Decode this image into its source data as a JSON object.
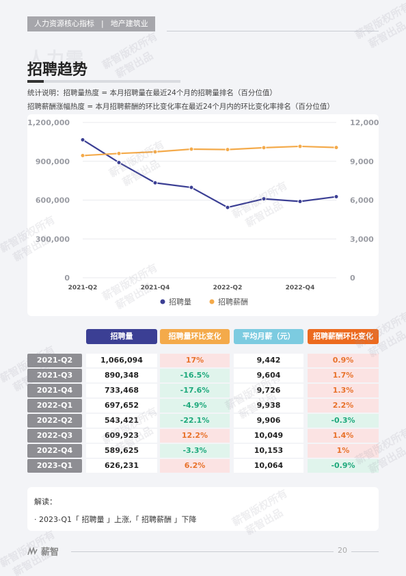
{
  "header": {
    "category": "人力资源核心指标",
    "separator": "|",
    "industry": "地产建筑业"
  },
  "background_word": "人力需",
  "page_title": "招聘趋势",
  "notes": [
    "统计说明：招聘量热度 = 本月招聘量在最近24个月的招聘量排名（百分位值）",
    "招聘薪酬涨幅热度 = 本月招聘薪酬的环比变化率在最近24个月内的环比变化率排名（百分位值）"
  ],
  "chart_data": {
    "type": "line",
    "x": [
      "2021-Q2",
      "2021-Q3",
      "2021-Q4",
      "2022-Q1",
      "2022-Q2",
      "2022-Q3",
      "2022-Q4",
      "2023-Q1"
    ],
    "x_tick_labels": [
      "2021-Q2",
      "2021-Q4",
      "2022-Q2",
      "2022-Q4"
    ],
    "y_left_ticks": [
      "1,200,000",
      "900,000",
      "600,000",
      "300,000",
      "0"
    ],
    "y_right_ticks": [
      "12,000",
      "9,000",
      "6,000",
      "3,000",
      "0"
    ],
    "ylim_left": [
      0,
      1200000
    ],
    "ylim_right": [
      0,
      12000
    ],
    "series": [
      {
        "name": "招聘量",
        "axis": "left",
        "color": "#3b3f94",
        "values": [
          1066094,
          890348,
          733468,
          697652,
          543421,
          609923,
          589625,
          626231
        ]
      },
      {
        "name": "招聘薪酬",
        "axis": "right",
        "color": "#f4aa4a",
        "values": [
          9442,
          9604,
          9726,
          9938,
          9906,
          10049,
          10153,
          10064
        ]
      }
    ],
    "legend_position": "bottom",
    "grid": true
  },
  "table": {
    "headers": [
      {
        "label": "招聘量",
        "color": "#3b3f94"
      },
      {
        "label": "招聘量环比变化",
        "color": "#f4aa4a"
      },
      {
        "label": "平均月薪（元）",
        "color": "#7ccbe0"
      },
      {
        "label": "招聘薪酬环比变化",
        "color": "#ec6a1e"
      }
    ],
    "rows": [
      {
        "period": "2021-Q2",
        "volume": "1,066,094",
        "volume_change": "17%",
        "volume_dir": "up",
        "salary": "9,442",
        "salary_change": "0.9%",
        "salary_dir": "up"
      },
      {
        "period": "2021-Q3",
        "volume": "890,348",
        "volume_change": "-16.5%",
        "volume_dir": "down",
        "salary": "9,604",
        "salary_change": "1.7%",
        "salary_dir": "up"
      },
      {
        "period": "2021-Q4",
        "volume": "733,468",
        "volume_change": "-17.6%",
        "volume_dir": "down",
        "salary": "9,726",
        "salary_change": "1.3%",
        "salary_dir": "up"
      },
      {
        "period": "2022-Q1",
        "volume": "697,652",
        "volume_change": "-4.9%",
        "volume_dir": "down",
        "salary": "9,938",
        "salary_change": "2.2%",
        "salary_dir": "up"
      },
      {
        "period": "2022-Q2",
        "volume": "543,421",
        "volume_change": "-22.1%",
        "volume_dir": "down",
        "salary": "9,906",
        "salary_change": "-0.3%",
        "salary_dir": "down"
      },
      {
        "period": "2022-Q3",
        "volume": "609,923",
        "volume_change": "12.2%",
        "volume_dir": "up",
        "salary": "10,049",
        "salary_change": "1.4%",
        "salary_dir": "up"
      },
      {
        "period": "2022-Q4",
        "volume": "589,625",
        "volume_change": "-3.3%",
        "volume_dir": "down",
        "salary": "10,153",
        "salary_change": "1%",
        "salary_dir": "up"
      },
      {
        "period": "2023-Q1",
        "volume": "626,231",
        "volume_change": "6.2%",
        "volume_dir": "up",
        "salary": "10,064",
        "salary_change": "-0.9%",
        "salary_dir": "down"
      }
    ]
  },
  "interpretation": {
    "title": "解读：",
    "text": "· 2023-Q1「 招聘量 」上涨,「 招聘薪酬 」下降"
  },
  "footer": {
    "logo_text": "薪智",
    "page_number": "20"
  },
  "watermark": "薪智版权所有 薪智出品"
}
